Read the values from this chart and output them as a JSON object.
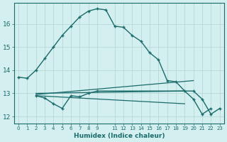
{
  "xlabel": "Humidex (Indice chaleur)",
  "background_color": "#d4efef",
  "grid_color": "#b8d8d8",
  "line_color": "#1a6b6b",
  "xlim": [
    -0.5,
    23.5
  ],
  "ylim": [
    11.7,
    16.9
  ],
  "xticks": [
    0,
    1,
    2,
    3,
    4,
    5,
    6,
    7,
    8,
    9,
    11,
    12,
    13,
    14,
    15,
    16,
    17,
    18,
    19,
    20,
    21,
    22,
    23
  ],
  "yticks": [
    12,
    13,
    14,
    15,
    16
  ],
  "main_curve": {
    "x": [
      0,
      1,
      2,
      3,
      4,
      5,
      6,
      7,
      8,
      9,
      10,
      11,
      12,
      13,
      14,
      15,
      16,
      17,
      18,
      19,
      20,
      21,
      22,
      23
    ],
    "y": [
      13.7,
      13.65,
      14.0,
      14.5,
      15.0,
      15.5,
      15.9,
      16.3,
      16.55,
      16.65,
      16.6,
      15.9,
      15.85,
      15.5,
      15.25,
      14.75,
      14.45,
      13.55,
      13.5,
      13.1,
      12.75,
      12.1,
      12.35,
      null
    ]
  },
  "curve2": {
    "x": [
      2,
      3,
      4,
      5,
      6,
      7,
      8,
      9,
      20,
      21,
      22,
      23
    ],
    "y": [
      12.9,
      12.8,
      12.55,
      12.35,
      12.9,
      12.85,
      13.0,
      13.1,
      13.1,
      12.75,
      12.1,
      12.35
    ]
  },
  "flat_line1": {
    "x": [
      2,
      19
    ],
    "y": [
      12.9,
      12.55
    ]
  },
  "flat_line2": {
    "x": [
      2,
      20
    ],
    "y": [
      12.95,
      13.55
    ]
  },
  "flat_line3": {
    "x": [
      2,
      19
    ],
    "y": [
      13.0,
      13.1
    ]
  }
}
